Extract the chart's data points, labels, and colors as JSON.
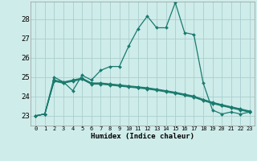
{
  "xlabel": "Humidex (Indice chaleur)",
  "background_color": "#ceecea",
  "grid_color": "#aacfcd",
  "line_color": "#1a7a6e",
  "x_ticks": [
    0,
    1,
    2,
    3,
    4,
    5,
    6,
    7,
    8,
    9,
    10,
    11,
    12,
    13,
    14,
    15,
    16,
    17,
    18,
    19,
    20,
    21,
    22,
    23
  ],
  "y_ticks": [
    23,
    24,
    25,
    26,
    27,
    28
  ],
  "ylim": [
    22.5,
    28.9
  ],
  "xlim": [
    -0.5,
    23.5
  ],
  "series": [
    [
      23.0,
      23.1,
      25.0,
      24.75,
      24.3,
      25.1,
      24.85,
      25.35,
      25.55,
      25.55,
      26.6,
      27.5,
      28.15,
      27.55,
      27.55,
      28.85,
      27.3,
      27.2,
      24.7,
      23.3,
      23.1,
      23.2,
      23.1,
      23.2
    ],
    [
      23.0,
      23.1,
      24.85,
      24.75,
      24.85,
      24.95,
      24.7,
      24.7,
      24.65,
      24.6,
      24.55,
      24.5,
      24.45,
      24.38,
      24.3,
      24.22,
      24.12,
      24.02,
      23.85,
      23.7,
      23.58,
      23.47,
      23.36,
      23.25
    ],
    [
      23.0,
      23.1,
      24.82,
      24.72,
      24.82,
      24.92,
      24.67,
      24.67,
      24.62,
      24.57,
      24.52,
      24.47,
      24.42,
      24.35,
      24.27,
      24.19,
      24.09,
      23.99,
      23.82,
      23.67,
      23.55,
      23.44,
      23.33,
      23.22
    ],
    [
      23.0,
      23.1,
      24.79,
      24.69,
      24.79,
      24.89,
      24.64,
      24.64,
      24.59,
      24.54,
      24.49,
      24.44,
      24.39,
      24.32,
      24.24,
      24.16,
      24.06,
      23.96,
      23.79,
      23.64,
      23.52,
      23.41,
      23.3,
      23.19
    ]
  ]
}
